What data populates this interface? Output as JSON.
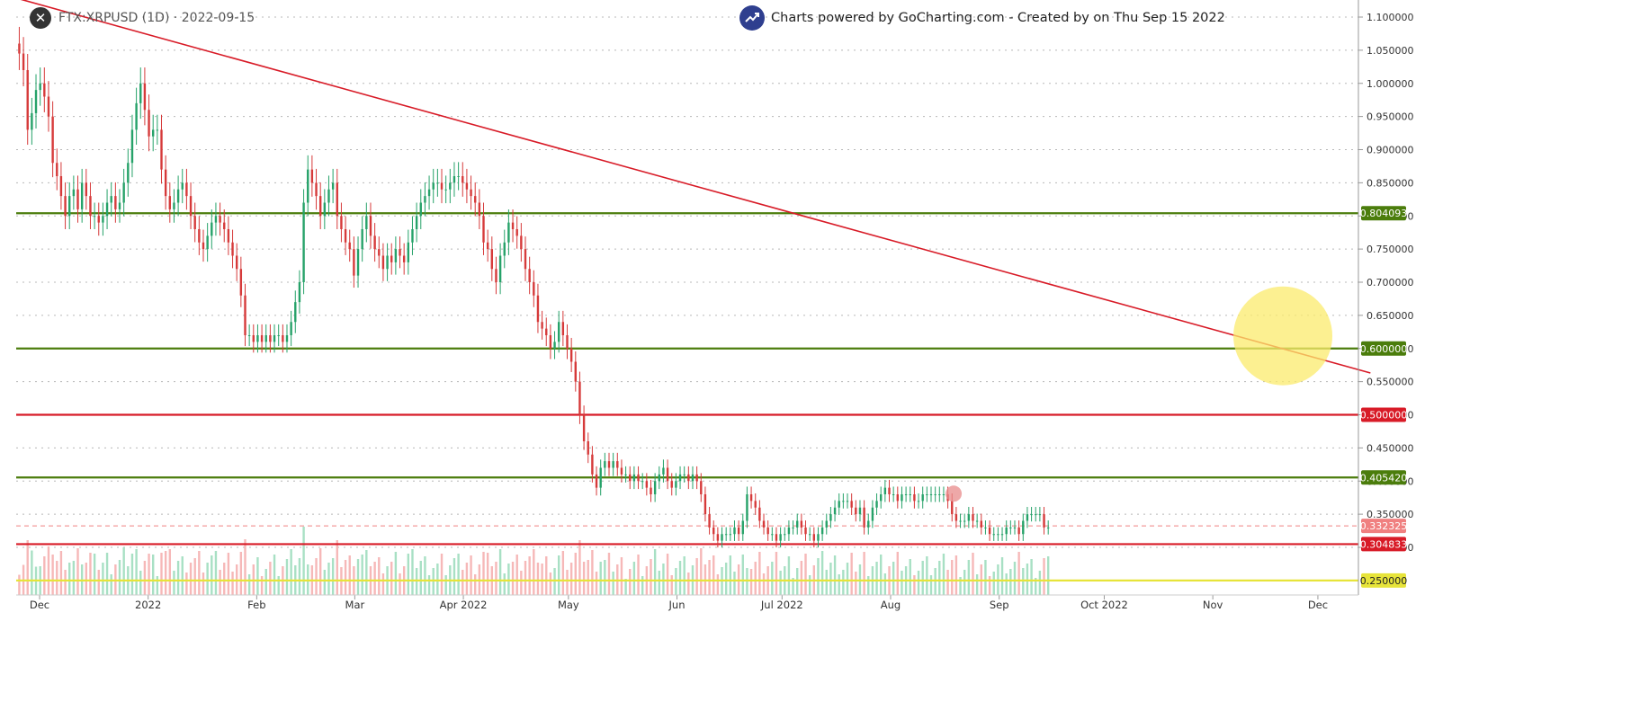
{
  "header": {
    "symbol_label": "FTX:XRPUSD (1D) · 2022-09-15",
    "credit": "Charts powered by GoCharting.com - Created by  on Thu Sep 15 2022"
  },
  "colors": {
    "up": "#26a269",
    "down": "#d63a3a",
    "vol_up": "#a8e0c4",
    "vol_down": "#f6b8b8",
    "support_green": "#4b7d0c",
    "resistance_red": "#d81b27",
    "trendline": "#d81b27",
    "highlight_circle": "#fbeb6c",
    "yellow_level": "#e7e43a",
    "last_price": "#f08080"
  },
  "chart_data": {
    "type": "candlestick",
    "instrument": "FTX:XRPUSD",
    "interval": "1D",
    "date": "2022-09-15",
    "y_axis": {
      "ticks": [
        "1.100000",
        "1.050000",
        "1.000000",
        "0.950000",
        "0.900000",
        "0.850000",
        "0.800000",
        "0.750000",
        "0.700000",
        "0.650000",
        "0.600000",
        "0.550000",
        "0.500000",
        "0.450000",
        "0.400000",
        "0.350000",
        "0.300000"
      ],
      "range": [
        0.25,
        1.115
      ]
    },
    "x_axis": {
      "ticks": [
        "Dec",
        "2022",
        "Feb",
        "Mar",
        "Apr 2022",
        "May",
        "Jun",
        "Jul 2022",
        "Aug",
        "Sep",
        "Oct 2022",
        "Nov",
        "Dec"
      ],
      "range": [
        "2021-11-25",
        "2022-12-16"
      ]
    },
    "horizontal_levels": [
      {
        "value": 0.804093,
        "label": "0.804093",
        "kind": "support"
      },
      {
        "value": 0.6,
        "label": "0.600000",
        "kind": "support"
      },
      {
        "value": 0.5,
        "label": "0.500000",
        "kind": "resistance"
      },
      {
        "value": 0.40542,
        "label": "0.405420",
        "kind": "support"
      },
      {
        "value": 0.304833,
        "label": "0.304833",
        "kind": "resistance"
      },
      {
        "value": 0.25,
        "label": "0.250000",
        "kind": "target"
      }
    ],
    "last_price": {
      "value": 0.332325,
      "label": "0.332325"
    },
    "trendline": {
      "points": [
        [
          "2021-11-20",
          1.135
        ],
        [
          "2022-12-16",
          0.563
        ]
      ]
    },
    "highlight_circle": {
      "date": "2022-11-21",
      "value": 0.619
    },
    "marker": {
      "date": "2022-08-19",
      "value": 0.381
    },
    "candles_close": [
      1.045,
      1.02,
      0.93,
      0.955,
      0.99,
      1.0,
      0.98,
      0.95,
      0.88,
      0.86,
      0.83,
      0.8,
      0.83,
      0.84,
      0.81,
      0.85,
      0.83,
      0.8,
      0.8,
      0.79,
      0.8,
      0.82,
      0.83,
      0.81,
      0.82,
      0.85,
      0.88,
      0.93,
      0.97,
      1.0,
      0.96,
      0.92,
      0.93,
      0.93,
      0.87,
      0.83,
      0.81,
      0.82,
      0.84,
      0.85,
      0.83,
      0.8,
      0.78,
      0.76,
      0.75,
      0.77,
      0.79,
      0.8,
      0.79,
      0.78,
      0.76,
      0.74,
      0.72,
      0.68,
      0.62,
      0.62,
      0.61,
      0.62,
      0.61,
      0.62,
      0.61,
      0.62,
      0.62,
      0.61,
      0.62,
      0.64,
      0.67,
      0.7,
      0.82,
      0.87,
      0.85,
      0.83,
      0.8,
      0.82,
      0.84,
      0.85,
      0.8,
      0.78,
      0.76,
      0.75,
      0.71,
      0.75,
      0.78,
      0.8,
      0.77,
      0.75,
      0.74,
      0.72,
      0.74,
      0.73,
      0.75,
      0.74,
      0.73,
      0.76,
      0.78,
      0.8,
      0.82,
      0.83,
      0.84,
      0.85,
      0.85,
      0.84,
      0.84,
      0.85,
      0.86,
      0.86,
      0.85,
      0.84,
      0.83,
      0.82,
      0.8,
      0.76,
      0.75,
      0.72,
      0.7,
      0.74,
      0.76,
      0.79,
      0.78,
      0.77,
      0.75,
      0.72,
      0.7,
      0.68,
      0.64,
      0.63,
      0.62,
      0.6,
      0.61,
      0.64,
      0.62,
      0.6,
      0.58,
      0.55,
      0.5,
      0.46,
      0.44,
      0.41,
      0.39,
      0.42,
      0.43,
      0.42,
      0.43,
      0.42,
      0.41,
      0.41,
      0.4,
      0.41,
      0.4,
      0.4,
      0.39,
      0.38,
      0.4,
      0.41,
      0.42,
      0.4,
      0.39,
      0.4,
      0.41,
      0.41,
      0.4,
      0.41,
      0.4,
      0.38,
      0.35,
      0.33,
      0.32,
      0.31,
      0.32,
      0.32,
      0.32,
      0.33,
      0.32,
      0.34,
      0.38,
      0.37,
      0.36,
      0.34,
      0.33,
      0.32,
      0.32,
      0.31,
      0.32,
      0.32,
      0.33,
      0.33,
      0.34,
      0.33,
      0.32,
      0.32,
      0.31,
      0.32,
      0.33,
      0.34,
      0.35,
      0.36,
      0.37,
      0.37,
      0.37,
      0.36,
      0.35,
      0.36,
      0.33,
      0.34,
      0.36,
      0.37,
      0.38,
      0.39,
      0.38,
      0.38,
      0.37,
      0.38,
      0.38,
      0.38,
      0.37,
      0.37,
      0.38,
      0.38,
      0.38,
      0.38,
      0.38,
      0.38,
      0.37,
      0.35,
      0.34,
      0.34,
      0.34,
      0.35,
      0.34,
      0.34,
      0.33,
      0.33,
      0.32,
      0.32,
      0.32,
      0.32,
      0.33,
      0.33,
      0.33,
      0.32,
      0.34,
      0.35,
      0.35,
      0.35,
      0.35,
      0.33,
      0.33
    ]
  }
}
